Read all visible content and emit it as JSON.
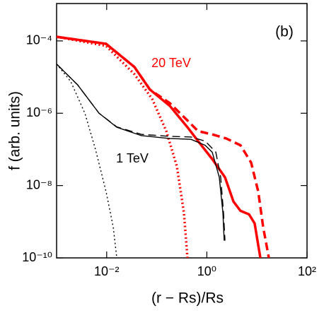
{
  "chart_data": {
    "type": "line",
    "xlabel": "(r − Rs)/Rs",
    "ylabel": "f (arb. units)",
    "annotations": [
      "(b)",
      "20 TeV",
      "1 TeV"
    ],
    "xscale": "log",
    "yscale": "log",
    "xlim": [
      0.001,
      100
    ],
    "ylim": [
      1e-10,
      0.00108
    ],
    "xticks": [
      {
        "value": 0.01,
        "label": "10⁻²"
      },
      {
        "value": 1,
        "label": "10⁰"
      },
      {
        "value": 100,
        "label": "10²"
      }
    ],
    "yticks": [
      {
        "value": 1e-10,
        "label": "10⁻¹⁰"
      },
      {
        "value": 1e-08,
        "label": "10⁻⁸"
      },
      {
        "value": 1e-06,
        "label": "10⁻⁶"
      },
      {
        "value": 0.0001,
        "label": "10⁻⁴"
      }
    ],
    "series": [
      {
        "color": "#ff0000",
        "style": "solid",
        "x": [
          0.001,
          0.0097,
          0.0358,
          0.0731,
          0.182,
          0.41,
          0.668,
          1.28,
          2.3,
          3.4,
          4.7,
          6.95,
          9.0,
          11.7
        ],
        "values": [
          0.00013,
          8.3e-05,
          1.9e-05,
          4.5e-06,
          1.6e-06,
          4.1e-07,
          1.7e-07,
          5.4e-08,
          1.7e-08,
          3.6e-09,
          2e-09,
          1.6e-09,
          9e-10,
          1e-10
        ]
      },
      {
        "color": "#ff0000",
        "style": "dashed",
        "x": [
          0.001,
          0.0097,
          0.0358,
          0.0731,
          0.182,
          0.41,
          0.668,
          1.28,
          2.45,
          4.7,
          7.66,
          10.6,
          13.3,
          17.3
        ],
        "values": [
          0.00013,
          8.3e-05,
          1.9e-05,
          4.5e-06,
          1.9e-06,
          6.3e-07,
          3.2e-07,
          2.6e-07,
          2e-07,
          1.3e-07,
          4.3e-08,
          6.9e-09,
          7.2e-10,
          1e-10
        ]
      },
      {
        "color": "#ff0000",
        "style": "dotted",
        "x": [
          0.001,
          0.0097,
          0.0358,
          0.0807,
          0.155,
          0.252,
          0.348,
          0.41
        ],
        "values": [
          0.00013,
          7.3e-05,
          1.2e-05,
          2.5e-06,
          3.2e-07,
          3.4e-08,
          1.8e-09,
          1e-10
        ]
      },
      {
        "color": "#000000",
        "style": "solid",
        "x": [
          0.001,
          0.00265,
          0.00704,
          0.0159,
          0.0495,
          0.182,
          0.483,
          0.925,
          1.28,
          1.77,
          2.09,
          2.22
        ],
        "values": [
          2.3e-05,
          6e-06,
          1e-06,
          4.1e-07,
          2.4e-07,
          2e-07,
          1.9e-07,
          1.3e-07,
          8.4e-08,
          1.7e-08,
          1.8e-09,
          3e-10
        ]
      },
      {
        "color": "#000000",
        "style": "dashed",
        "x": [
          0.001,
          0.00265,
          0.00704,
          0.0159,
          0.0495,
          0.182,
          0.483,
          0.925,
          1.51,
          1.89,
          2.15,
          2.3
        ],
        "values": [
          2.3e-05,
          6e-06,
          1e-06,
          4.2e-07,
          2.6e-07,
          2.3e-07,
          2.2e-07,
          1.7e-07,
          8.4e-08,
          1.7e-08,
          1.8e-09,
          3e-10
        ]
      },
      {
        "color": "#000000",
        "style": "dotted",
        "x": [
          0.001,
          0.00191,
          0.00367,
          0.00598,
          0.0097,
          0.0135,
          0.0159
        ],
        "values": [
          2.3e-05,
          7.6e-06,
          1e-06,
          1e-07,
          6.9e-09,
          7.2e-10,
          1e-10
        ]
      }
    ]
  }
}
